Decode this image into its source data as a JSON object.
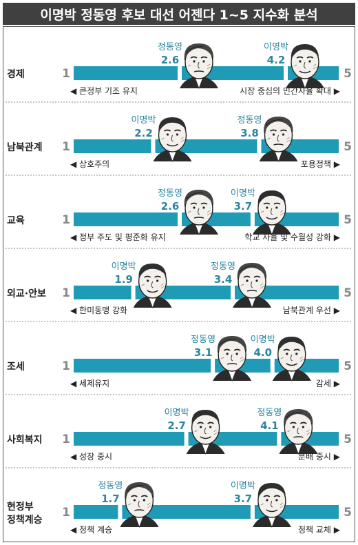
{
  "title": "이명박 정동영 후보 대선 어젠다 1~5 지수화 분석",
  "chart_data": {
    "type": "dot-scale",
    "scale": [
      1,
      5
    ],
    "min_label": "1",
    "max_label": "5",
    "candidates": [
      {
        "name": "이명박",
        "face": "lee-face-icon"
      },
      {
        "name": "정동영",
        "face": "chung-face-icon"
      }
    ],
    "colors": {
      "bar": "#1f9bb5",
      "label": "#2a86a0",
      "text": "#222222",
      "divider": "#888888"
    },
    "categories": [
      {
        "name": "경제",
        "left": "큰정부 기조 유지",
        "right": "시장 중심의 민간자율 확대",
        "markers": [
          {
            "name": "정동영",
            "value": 2.6
          },
          {
            "name": "이명박",
            "value": 4.2
          }
        ]
      },
      {
        "name": "남북관계",
        "left": "상호주의",
        "right": "포용정책",
        "markers": [
          {
            "name": "이명박",
            "value": 2.2
          },
          {
            "name": "정동영",
            "value": 3.8
          }
        ]
      },
      {
        "name": "교육",
        "left": "정부 주도 및 평준화 유지",
        "right": "학교 자율 및 수월성 강화",
        "markers": [
          {
            "name": "정동영",
            "value": 2.6
          },
          {
            "name": "이명박",
            "value": 3.7
          }
        ]
      },
      {
        "name": "외교·안보",
        "left": "한미동맹 강화",
        "right": "남북관계 우선",
        "markers": [
          {
            "name": "이명박",
            "value": 1.9
          },
          {
            "name": "정동영",
            "value": 3.4
          }
        ]
      },
      {
        "name": "조세",
        "left": "세제유지",
        "right": "감세",
        "markers": [
          {
            "name": "정동영",
            "value": 3.1
          },
          {
            "name": "이명박",
            "value": 4.0
          }
        ]
      },
      {
        "name": "사회복지",
        "left": "성장 중시",
        "right": "분배 중시",
        "markers": [
          {
            "name": "이명박",
            "value": 2.7
          },
          {
            "name": "정동영",
            "value": 4.1
          }
        ]
      },
      {
        "name": "현정부\n정책계승",
        "left": "정책 계승",
        "right": "정책 교체",
        "markers": [
          {
            "name": "정동영",
            "value": 1.7
          },
          {
            "name": "이명박",
            "value": 3.7
          }
        ]
      }
    ]
  }
}
